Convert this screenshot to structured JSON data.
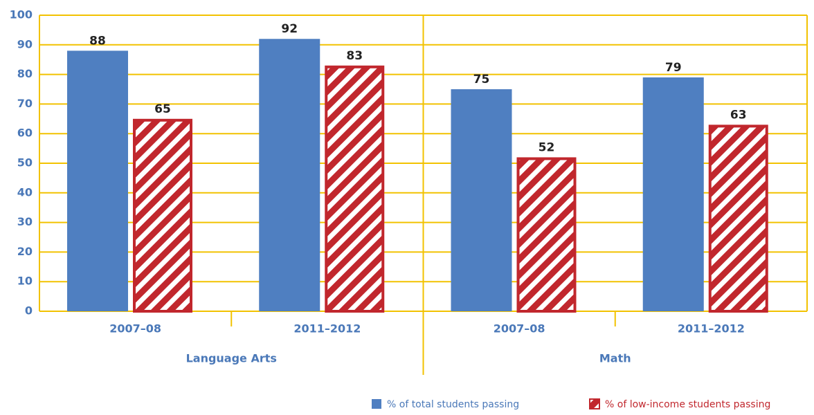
{
  "chart_data": {
    "type": "bar",
    "categories": [
      "2007–08",
      "2011–2012",
      "2007–08",
      "2011–2012"
    ],
    "groups": [
      "Language Arts",
      "Math"
    ],
    "series": [
      {
        "name": "% of total students passing",
        "color": "#4f7fc1",
        "values": [
          88,
          92,
          75,
          79
        ]
      },
      {
        "name": "% of low-income students passing",
        "color": "#c1272d",
        "hatch": true,
        "values": [
          65,
          83,
          52,
          63
        ]
      }
    ],
    "ylim": [
      0,
      100
    ],
    "yticks": [
      0,
      10,
      20,
      30,
      40,
      50,
      60,
      70,
      80,
      90,
      100
    ],
    "grid": true,
    "grid_color": "#f2c200"
  }
}
